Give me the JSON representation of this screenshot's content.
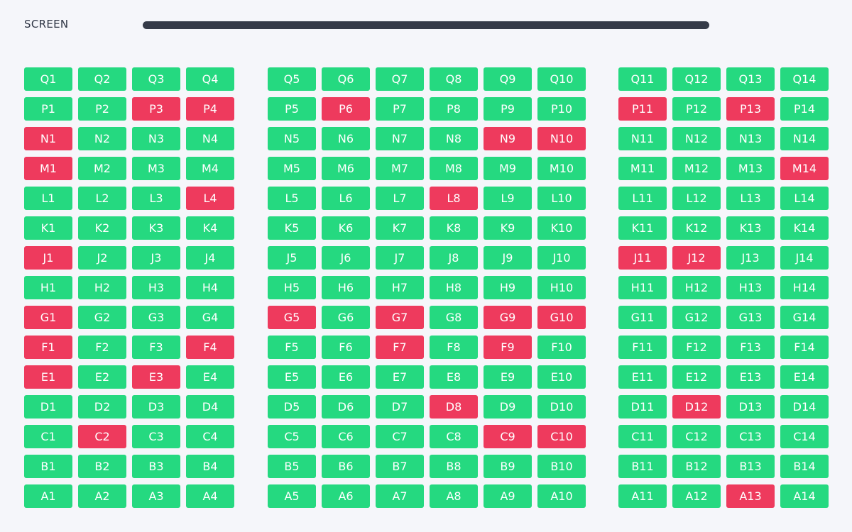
{
  "screen": {
    "label": "SCREEN"
  },
  "colors": {
    "available": "#25d980",
    "booked": "#ee3a5d",
    "screen": "#353b48",
    "background": "#f5f6fa"
  },
  "rows": [
    "Q",
    "P",
    "N",
    "M",
    "L",
    "K",
    "J",
    "H",
    "G",
    "F",
    "E",
    "D",
    "C",
    "B",
    "A"
  ],
  "sections": [
    {
      "id": "left",
      "seat_numbers": [
        1,
        2,
        3,
        4
      ]
    },
    {
      "id": "center",
      "seat_numbers": [
        5,
        6,
        7,
        8,
        9,
        10
      ]
    },
    {
      "id": "right",
      "seat_numbers": [
        11,
        12,
        13,
        14
      ]
    }
  ],
  "booked_seats": [
    "P3",
    "P4",
    "P6",
    "P11",
    "P13",
    "N1",
    "N9",
    "N10",
    "M1",
    "M14",
    "L4",
    "L8",
    "J1",
    "J11",
    "J12",
    "G1",
    "G5",
    "G7",
    "G9",
    "G10",
    "F1",
    "F4",
    "F7",
    "F9",
    "E1",
    "E3",
    "D8",
    "D12",
    "C2",
    "C9",
    "C10",
    "A13"
  ]
}
